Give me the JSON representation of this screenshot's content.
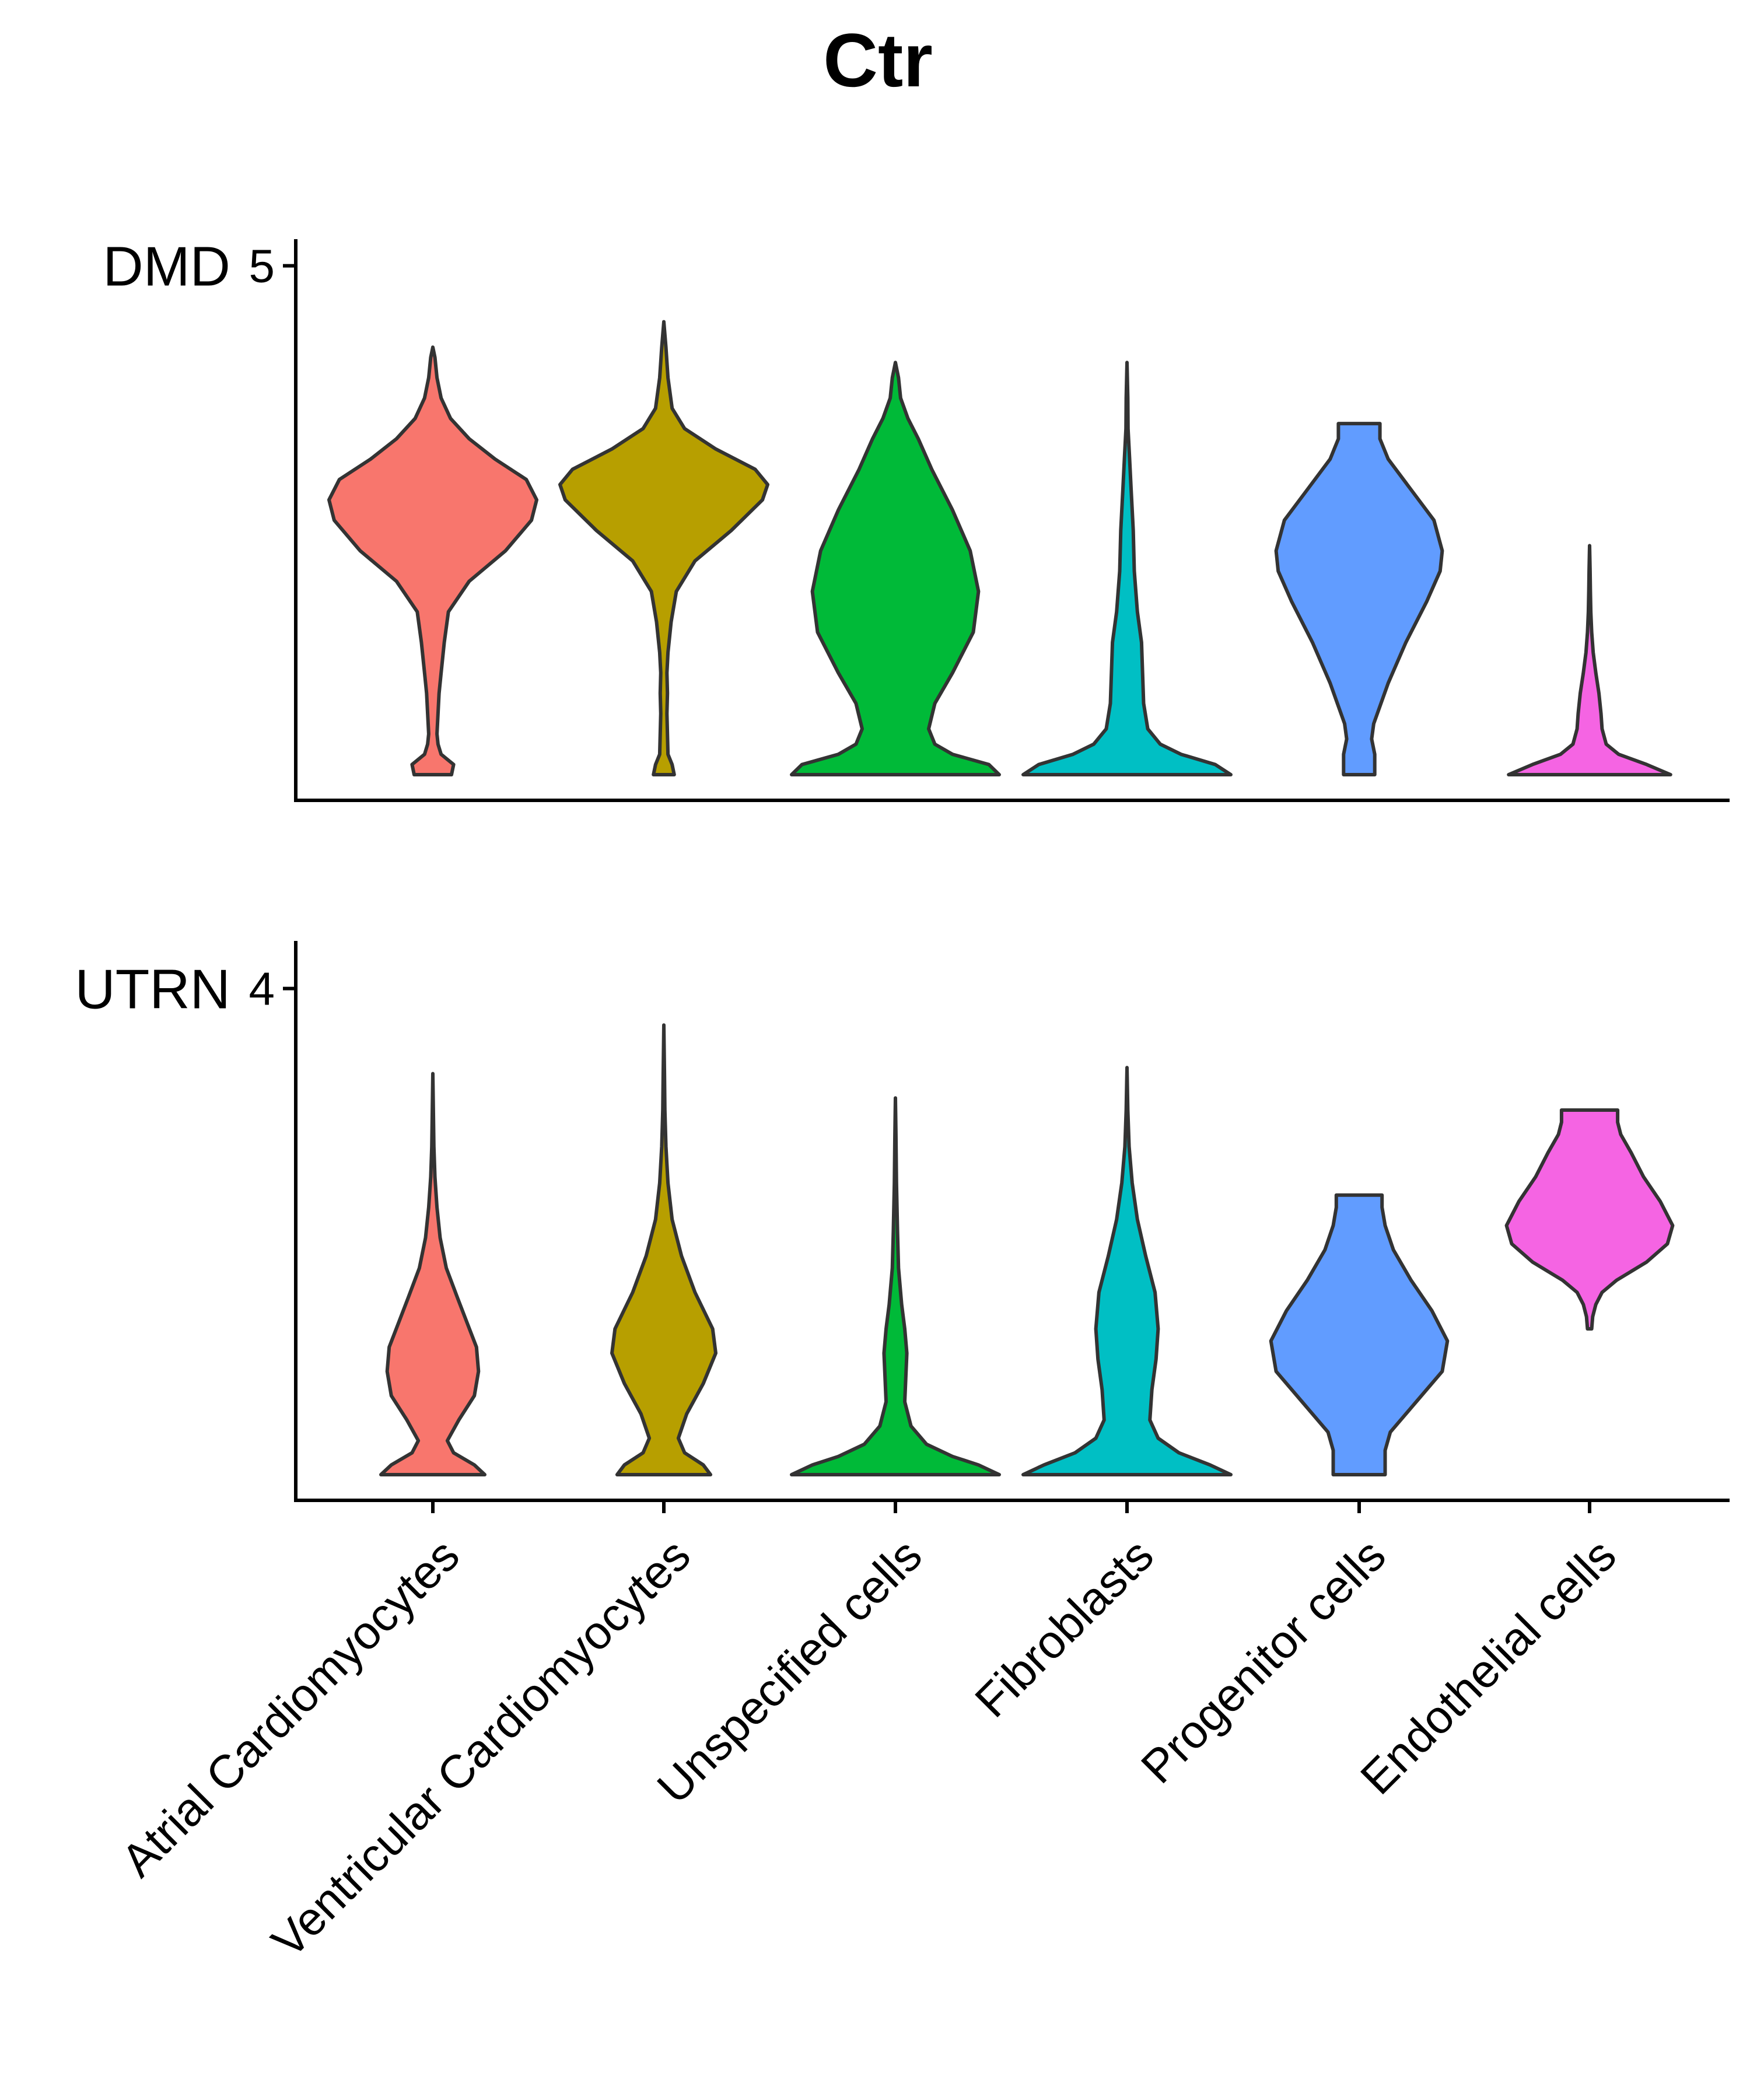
{
  "chart_data": {
    "type": "violin",
    "title": "Ctr",
    "categories": [
      "Atrial Cardiomyocytes",
      "Ventricular Cardiomyocytes",
      "Unspecified cells",
      "Fibroblasts",
      "Progenitor cells",
      "Endothelial cells"
    ],
    "colors": [
      "#F8766D",
      "#B79F00",
      "#00BA38",
      "#00BFC4",
      "#619CFF",
      "#F564E3"
    ],
    "legend": "none",
    "grid": false,
    "panels": [
      {
        "gene": "DMD",
        "ylim": [
          0,
          5.25
        ],
        "yticks": [
          5
        ],
        "violins": [
          {
            "category": "Atrial Cardiomyocytes",
            "min": 0,
            "max": 4.2,
            "mode": 2.7,
            "profile": [
              [
                0,
                0.18
              ],
              [
                0.1,
                0.2
              ],
              [
                0.2,
                0.08
              ],
              [
                0.3,
                0.05
              ],
              [
                0.4,
                0.04
              ],
              [
                0.5,
                0.045
              ],
              [
                0.6,
                0.05
              ],
              [
                0.8,
                0.06
              ],
              [
                1.0,
                0.08
              ],
              [
                1.3,
                0.11
              ],
              [
                1.6,
                0.15
              ],
              [
                1.9,
                0.35
              ],
              [
                2.2,
                0.7
              ],
              [
                2.5,
                0.95
              ],
              [
                2.7,
                1.0
              ],
              [
                2.9,
                0.9
              ],
              [
                3.1,
                0.6
              ],
              [
                3.3,
                0.35
              ],
              [
                3.5,
                0.17
              ],
              [
                3.7,
                0.08
              ],
              [
                3.9,
                0.04
              ],
              [
                4.1,
                0.02
              ],
              [
                4.2,
                0.0
              ]
            ]
          },
          {
            "category": "Ventricular Cardiomyocytes",
            "min": 0,
            "max": 4.45,
            "mode": 2.85,
            "profile": [
              [
                0,
                0.1
              ],
              [
                0.1,
                0.08
              ],
              [
                0.2,
                0.04
              ],
              [
                0.4,
                0.035
              ],
              [
                0.6,
                0.03
              ],
              [
                0.8,
                0.035
              ],
              [
                1.0,
                0.03
              ],
              [
                1.2,
                0.04
              ],
              [
                1.5,
                0.07
              ],
              [
                1.8,
                0.12
              ],
              [
                2.1,
                0.3
              ],
              [
                2.4,
                0.65
              ],
              [
                2.7,
                0.95
              ],
              [
                2.85,
                1.0
              ],
              [
                3.0,
                0.88
              ],
              [
                3.2,
                0.5
              ],
              [
                3.4,
                0.2
              ],
              [
                3.6,
                0.08
              ],
              [
                3.9,
                0.04
              ],
              [
                4.2,
                0.02
              ],
              [
                4.45,
                0.0
              ]
            ]
          },
          {
            "category": "Unspecified cells",
            "min": 0,
            "max": 4.05,
            "mode": 1.8,
            "profile": [
              [
                0,
                1.0
              ],
              [
                0.1,
                0.9
              ],
              [
                0.2,
                0.55
              ],
              [
                0.3,
                0.38
              ],
              [
                0.45,
                0.32
              ],
              [
                0.7,
                0.38
              ],
              [
                1.0,
                0.55
              ],
              [
                1.4,
                0.75
              ],
              [
                1.8,
                0.8
              ],
              [
                2.2,
                0.72
              ],
              [
                2.6,
                0.55
              ],
              [
                3.0,
                0.35
              ],
              [
                3.3,
                0.22
              ],
              [
                3.5,
                0.12
              ],
              [
                3.7,
                0.05
              ],
              [
                3.9,
                0.03
              ],
              [
                4.05,
                0.0
              ]
            ]
          },
          {
            "category": "Fibroblasts",
            "min": 0,
            "max": 4.05,
            "mode": 0.05,
            "profile": [
              [
                0,
                1.0
              ],
              [
                0.1,
                0.85
              ],
              [
                0.2,
                0.52
              ],
              [
                0.3,
                0.32
              ],
              [
                0.45,
                0.2
              ],
              [
                0.7,
                0.16
              ],
              [
                1.0,
                0.15
              ],
              [
                1.3,
                0.14
              ],
              [
                1.6,
                0.1
              ],
              [
                2.0,
                0.07
              ],
              [
                2.4,
                0.06
              ],
              [
                2.8,
                0.04
              ],
              [
                3.1,
                0.025
              ],
              [
                3.4,
                0.01
              ],
              [
                3.7,
                0.008
              ],
              [
                4.05,
                0.0
              ]
            ]
          },
          {
            "category": "Progenitor cells",
            "min": 0,
            "max": 3.45,
            "mode": 2.2,
            "profile": [
              [
                0,
                0.15
              ],
              [
                0.2,
                0.15
              ],
              [
                0.35,
                0.12
              ],
              [
                0.5,
                0.14
              ],
              [
                0.9,
                0.28
              ],
              [
                1.3,
                0.45
              ],
              [
                1.7,
                0.65
              ],
              [
                2.0,
                0.78
              ],
              [
                2.2,
                0.8
              ],
              [
                2.5,
                0.72
              ],
              [
                2.8,
                0.5
              ],
              [
                3.1,
                0.28
              ],
              [
                3.3,
                0.2
              ],
              [
                3.45,
                0.2
              ]
            ]
          },
          {
            "category": "Endothelial cells",
            "min": 0,
            "max": 2.25,
            "mode": 0.05,
            "profile": [
              [
                0,
                0.78
              ],
              [
                0.1,
                0.55
              ],
              [
                0.2,
                0.28
              ],
              [
                0.3,
                0.16
              ],
              [
                0.45,
                0.12
              ],
              [
                0.6,
                0.11
              ],
              [
                0.8,
                0.09
              ],
              [
                1.0,
                0.06
              ],
              [
                1.2,
                0.035
              ],
              [
                1.4,
                0.02
              ],
              [
                1.6,
                0.012
              ],
              [
                1.8,
                0.008
              ],
              [
                2.0,
                0.005
              ],
              [
                2.25,
                0.0
              ]
            ]
          }
        ]
      },
      {
        "gene": "UTRN",
        "ylim": [
          0,
          4.2
        ],
        "yticks": [
          4
        ],
        "violins": [
          {
            "category": "Atrial Cardiomyocytes",
            "min": 0,
            "max": 3.3,
            "mode": 0.9,
            "profile": [
              [
                0,
                0.5
              ],
              [
                0.08,
                0.4
              ],
              [
                0.18,
                0.2
              ],
              [
                0.28,
                0.14
              ],
              [
                0.45,
                0.25
              ],
              [
                0.65,
                0.4
              ],
              [
                0.85,
                0.44
              ],
              [
                1.05,
                0.42
              ],
              [
                1.25,
                0.33
              ],
              [
                1.45,
                0.24
              ],
              [
                1.7,
                0.13
              ],
              [
                1.95,
                0.07
              ],
              [
                2.2,
                0.04
              ],
              [
                2.45,
                0.02
              ],
              [
                2.7,
                0.01
              ],
              [
                3.0,
                0.005
              ],
              [
                3.3,
                0.0
              ]
            ]
          },
          {
            "category": "Ventricular Cardiomyocytes",
            "min": 0,
            "max": 3.7,
            "mode": 1.05,
            "profile": [
              [
                0,
                0.45
              ],
              [
                0.08,
                0.38
              ],
              [
                0.18,
                0.2
              ],
              [
                0.3,
                0.14
              ],
              [
                0.5,
                0.22
              ],
              [
                0.75,
                0.38
              ],
              [
                1.0,
                0.5
              ],
              [
                1.2,
                0.47
              ],
              [
                1.5,
                0.3
              ],
              [
                1.8,
                0.17
              ],
              [
                2.1,
                0.08
              ],
              [
                2.4,
                0.04
              ],
              [
                2.7,
                0.02
              ],
              [
                3.0,
                0.01
              ],
              [
                3.3,
                0.006
              ],
              [
                3.7,
                0.0
              ]
            ]
          },
          {
            "category": "Unspecified cells",
            "min": 0,
            "max": 3.1,
            "mode": 0.05,
            "profile": [
              [
                0,
                1.0
              ],
              [
                0.08,
                0.8
              ],
              [
                0.15,
                0.55
              ],
              [
                0.25,
                0.3
              ],
              [
                0.4,
                0.15
              ],
              [
                0.6,
                0.09
              ],
              [
                0.8,
                0.1
              ],
              [
                1.0,
                0.11
              ],
              [
                1.2,
                0.09
              ],
              [
                1.4,
                0.06
              ],
              [
                1.7,
                0.03
              ],
              [
                2.0,
                0.02
              ],
              [
                2.4,
                0.01
              ],
              [
                2.8,
                0.005
              ],
              [
                3.1,
                0.0
              ]
            ]
          },
          {
            "category": "Fibroblasts",
            "min": 0,
            "max": 3.35,
            "mode": 0.05,
            "profile": [
              [
                0,
                1.0
              ],
              [
                0.08,
                0.8
              ],
              [
                0.18,
                0.5
              ],
              [
                0.3,
                0.3
              ],
              [
                0.45,
                0.22
              ],
              [
                0.7,
                0.24
              ],
              [
                0.95,
                0.28
              ],
              [
                1.2,
                0.3
              ],
              [
                1.5,
                0.27
              ],
              [
                1.8,
                0.18
              ],
              [
                2.1,
                0.1
              ],
              [
                2.4,
                0.05
              ],
              [
                2.7,
                0.02
              ],
              [
                3.0,
                0.008
              ],
              [
                3.35,
                0.0
              ]
            ]
          },
          {
            "category": "Progenitor cells",
            "min": 0,
            "max": 2.3,
            "mode": 1.1,
            "profile": [
              [
                0,
                0.25
              ],
              [
                0.2,
                0.25
              ],
              [
                0.35,
                0.3
              ],
              [
                0.6,
                0.55
              ],
              [
                0.85,
                0.8
              ],
              [
                1.1,
                0.85
              ],
              [
                1.35,
                0.7
              ],
              [
                1.6,
                0.5
              ],
              [
                1.85,
                0.33
              ],
              [
                2.05,
                0.25
              ],
              [
                2.2,
                0.22
              ],
              [
                2.3,
                0.22
              ]
            ]
          },
          {
            "category": "Endothelial cells",
            "min": 1.2,
            "max": 3.0,
            "mode": 2.0,
            "profile": [
              [
                1.2,
                0.02
              ],
              [
                1.3,
                0.03
              ],
              [
                1.4,
                0.06
              ],
              [
                1.5,
                0.12
              ],
              [
                1.6,
                0.26
              ],
              [
                1.75,
                0.55
              ],
              [
                1.9,
                0.75
              ],
              [
                2.05,
                0.8
              ],
              [
                2.25,
                0.68
              ],
              [
                2.45,
                0.52
              ],
              [
                2.65,
                0.4
              ],
              [
                2.8,
                0.3
              ],
              [
                2.9,
                0.27
              ],
              [
                3.0,
                0.27
              ]
            ]
          }
        ]
      }
    ]
  }
}
